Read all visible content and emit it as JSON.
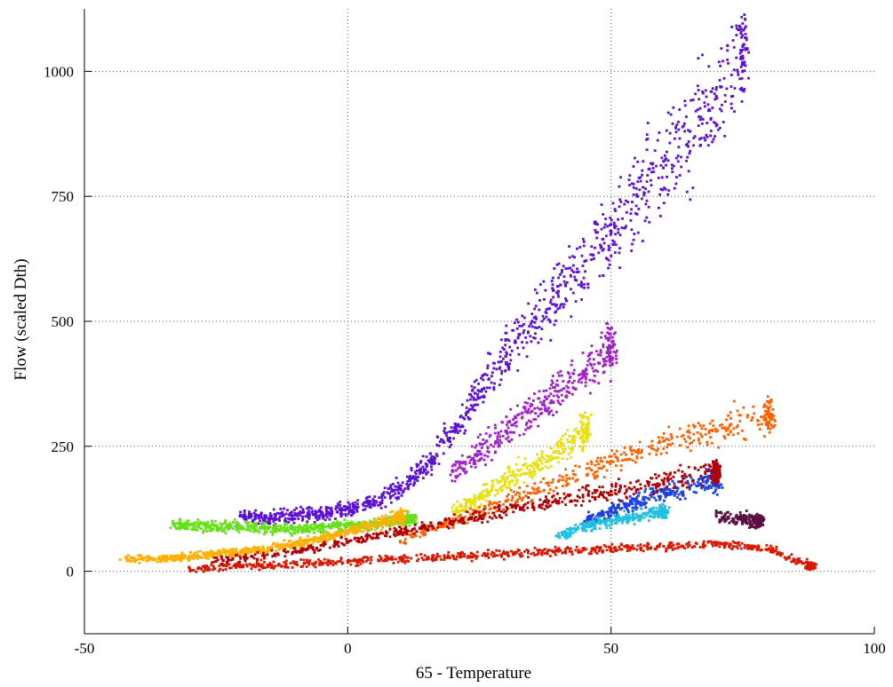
{
  "chart_data": {
    "type": "scatter",
    "title": "",
    "xlabel": "65 - Temperature",
    "ylabel": "Flow (scaled Dth)",
    "xlim": [
      -50,
      100
    ],
    "ylim": [
      -125,
      1125
    ],
    "grid": true,
    "legend": "none",
    "x_ticks": [
      -50,
      0,
      50,
      100
    ],
    "x_tick_labels": [
      "-50",
      "0",
      "50",
      "100"
    ],
    "y_ticks": [
      0,
      250,
      500,
      750,
      1000
    ],
    "y_tick_labels": [
      "0",
      "250",
      "500",
      "750",
      "1000"
    ],
    "series": [
      {
        "color": "#5b10d4",
        "x": [
          -20,
          -15,
          -10,
          -5,
          0,
          5,
          10,
          15,
          20,
          25,
          30,
          35,
          40,
          45,
          50,
          55,
          60,
          65,
          70,
          75
        ],
        "y": [
          110,
          105,
          112,
          115,
          125,
          140,
          165,
          210,
          280,
          360,
          430,
          500,
          560,
          620,
          680,
          750,
          820,
          880,
          950,
          1050
        ]
      },
      {
        "color": "#a020c8",
        "x": [
          20,
          25,
          30,
          35,
          40,
          45,
          50
        ],
        "y": [
          200,
          240,
          280,
          320,
          360,
          400,
          450
        ]
      },
      {
        "color": "#66e01a",
        "x": [
          -33,
          -30,
          -25,
          -20,
          -15,
          -10,
          -5,
          0,
          5,
          10,
          12
        ],
        "y": [
          95,
          92,
          90,
          88,
          86,
          85,
          88,
          92,
          95,
          100,
          105
        ]
      },
      {
        "color": "#e8e010",
        "x": [
          20,
          25,
          30,
          35,
          40,
          45
        ],
        "y": [
          120,
          150,
          180,
          210,
          240,
          280
        ]
      },
      {
        "color": "#ffb000",
        "x": [
          -42,
          -35,
          -30,
          -25,
          -20,
          -15,
          -10,
          -5,
          0,
          5,
          10
        ],
        "y": [
          25,
          25,
          30,
          35,
          40,
          45,
          55,
          65,
          80,
          95,
          110
        ]
      },
      {
        "color": "#ff6000",
        "x": [
          10,
          20,
          30,
          40,
          50,
          60,
          70,
          80
        ],
        "y": [
          60,
          100,
          140,
          180,
          220,
          260,
          280,
          310
        ]
      },
      {
        "color": "#1e40e0",
        "x": [
          45,
          50,
          55,
          60,
          65,
          70
        ],
        "y": [
          100,
          120,
          140,
          160,
          170,
          180
        ]
      },
      {
        "color": "#20c0e0",
        "x": [
          40,
          45,
          50,
          55,
          60
        ],
        "y": [
          70,
          90,
          100,
          110,
          120
        ]
      },
      {
        "color": "#d81800",
        "x": [
          -30,
          -20,
          -10,
          0,
          10,
          20,
          30,
          40,
          50,
          60,
          70,
          80,
          88
        ],
        "y": [
          5,
          10,
          15,
          20,
          25,
          30,
          35,
          40,
          45,
          50,
          55,
          45,
          10
        ]
      },
      {
        "color": "#b00000",
        "x": [
          -25,
          -10,
          0,
          10,
          20,
          30,
          40,
          50,
          60,
          70
        ],
        "y": [
          20,
          40,
          60,
          80,
          100,
          120,
          140,
          160,
          180,
          200
        ]
      },
      {
        "color": "#5a1040",
        "x": [
          70,
          75,
          78
        ],
        "y": [
          110,
          105,
          100
        ]
      }
    ]
  }
}
